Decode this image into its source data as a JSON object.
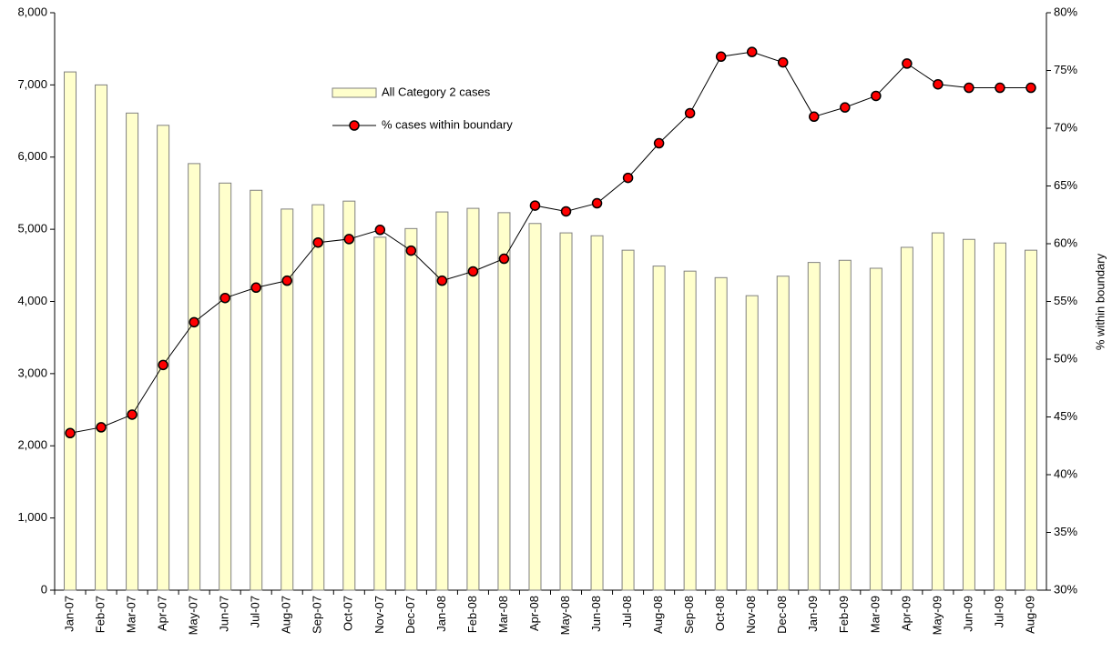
{
  "chart_data": {
    "type": "bar",
    "categories": [
      "Jan-07",
      "Feb-07",
      "Mar-07",
      "Apr-07",
      "May-07",
      "Jun-07",
      "Jul-07",
      "Aug-07",
      "Sep-07",
      "Oct-07",
      "Nov-07",
      "Dec-07",
      "Jan-08",
      "Feb-08",
      "Mar-08",
      "Apr-08",
      "May-08",
      "Jun-08",
      "Jul-08",
      "Aug-08",
      "Sep-08",
      "Oct-08",
      "Nov-08",
      "Dec-08",
      "Jan-09",
      "Feb-09",
      "Mar-09",
      "Apr-09",
      "May-09",
      "Jun-09",
      "Jul-09",
      "Aug-09"
    ],
    "series": [
      {
        "name": "All Category 2 cases",
        "type": "bar",
        "color": "#ffffcc",
        "values": [
          7180,
          7000,
          6610,
          6440,
          5910,
          5640,
          5540,
          5280,
          5340,
          5390,
          4890,
          5010,
          5240,
          5290,
          5230,
          5080,
          4950,
          4910,
          4710,
          4490,
          4420,
          4330,
          4080,
          4350,
          4540,
          4570,
          4460,
          4750,
          4950,
          4860,
          4810,
          4710
        ]
      },
      {
        "name": "% cases within boundary",
        "type": "line",
        "axis": "y2",
        "color": "#ff0000",
        "values": [
          43.6,
          44.1,
          45.2,
          49.5,
          53.2,
          55.3,
          56.2,
          56.8,
          60.1,
          60.4,
          61.2,
          59.4,
          56.8,
          57.6,
          58.7,
          63.3,
          62.8,
          63.5,
          65.7,
          68.7,
          71.3,
          76.2,
          76.6,
          75.7,
          71.0,
          71.8,
          72.8,
          75.6,
          73.8,
          73.5,
          73.5,
          73.5
        ]
      }
    ],
    "ylim": [
      0,
      8000
    ],
    "yticks": [
      0,
      {
        "value": 1000,
        "label": "1,000"
      },
      {
        "value": 2000,
        "label": "2,000"
      },
      {
        "value": 3000,
        "label": "3,000"
      },
      {
        "value": 4000,
        "label": "4,000"
      },
      {
        "value": 5000,
        "label": "5,000"
      },
      {
        "value": 6000,
        "label": "6,000"
      },
      {
        "value": 7000,
        "label": "7,000"
      },
      {
        "value": 8000,
        "label": "8,000"
      }
    ],
    "y2lim": [
      30,
      80
    ],
    "y2ticks": [
      {
        "value": 30,
        "label": "30%"
      },
      {
        "value": 35,
        "label": "35%"
      },
      {
        "value": 40,
        "label": "40%"
      },
      {
        "value": 45,
        "label": "45%"
      },
      {
        "value": 50,
        "label": "50%"
      },
      {
        "value": 55,
        "label": "55%"
      },
      {
        "value": 60,
        "label": "60%"
      },
      {
        "value": 65,
        "label": "65%"
      },
      {
        "value": 70,
        "label": "70%"
      },
      {
        "value": 75,
        "label": "75%"
      },
      {
        "value": 80,
        "label": "80%"
      }
    ],
    "y2_label": "% within boundary",
    "grid": false,
    "legend": "upper center"
  }
}
